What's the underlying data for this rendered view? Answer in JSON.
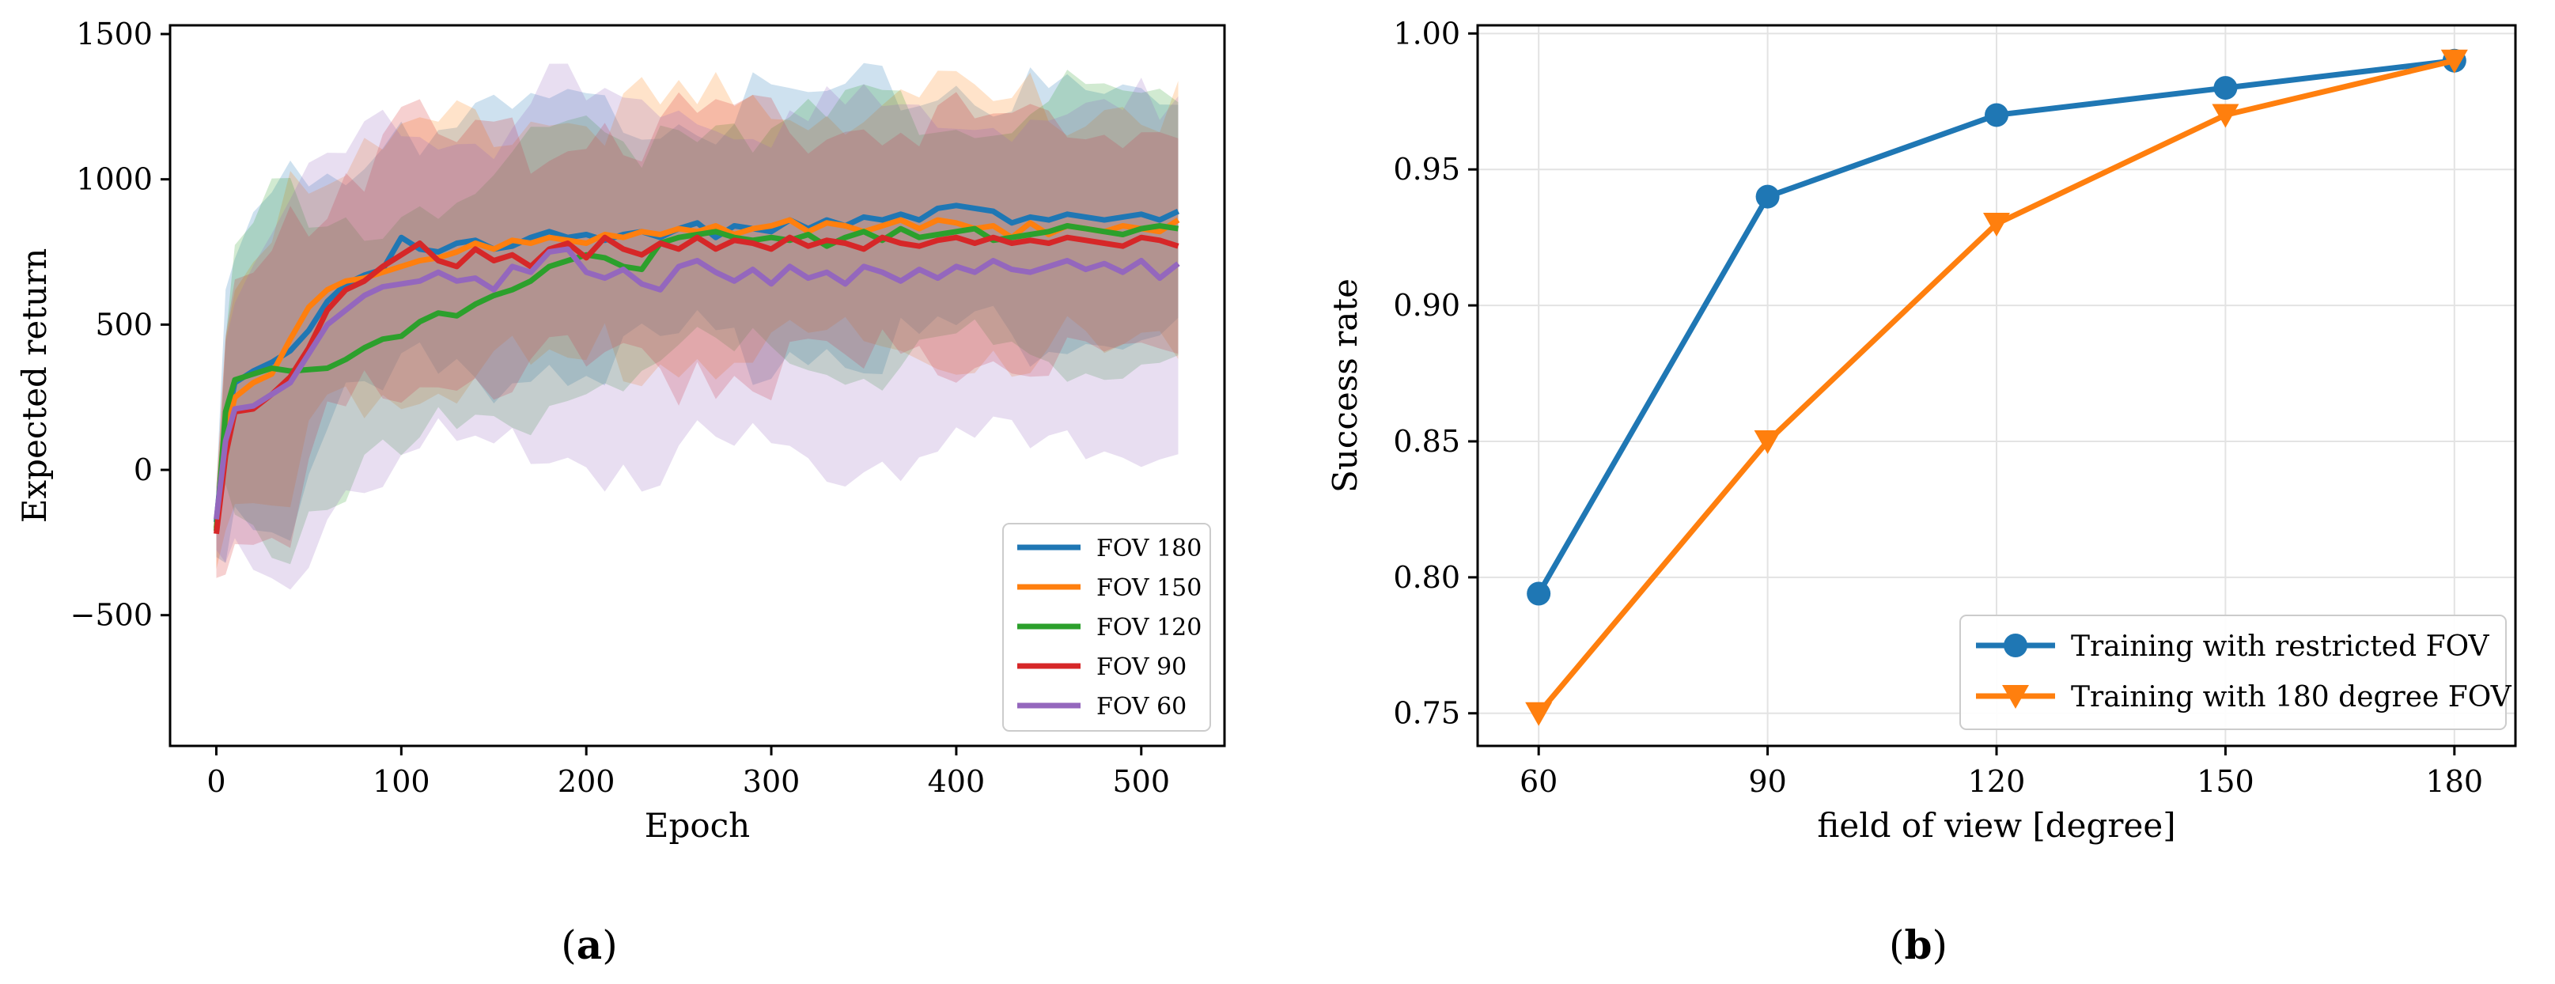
{
  "chart_data": [
    {
      "type": "line",
      "panel_label": "(a)",
      "panel_letter": "a",
      "xlabel": "Epoch",
      "ylabel": "Expected return",
      "xlim": [
        -25,
        545
      ],
      "ylim": [
        -950,
        1530
      ],
      "xticks": [
        0,
        100,
        200,
        300,
        400,
        500
      ],
      "yticks": [
        -500,
        0,
        500,
        1000,
        1500
      ],
      "ytick_labels": [
        "−500",
        "0",
        "500",
        "1000",
        "1500"
      ],
      "legend_position": "lower-right",
      "series": [
        {
          "name": "FOV 180",
          "color": "#1f77b4",
          "x": [
            0,
            5,
            10,
            20,
            30,
            40,
            50,
            60,
            70,
            80,
            90,
            100,
            110,
            120,
            130,
            140,
            150,
            160,
            170,
            180,
            190,
            200,
            210,
            220,
            230,
            240,
            250,
            260,
            270,
            280,
            290,
            300,
            310,
            320,
            330,
            340,
            350,
            360,
            370,
            380,
            390,
            400,
            410,
            420,
            430,
            440,
            450,
            460,
            470,
            480,
            490,
            500,
            510,
            520
          ],
          "y": [
            -180,
            150,
            300,
            340,
            370,
            410,
            480,
            580,
            640,
            670,
            690,
            800,
            760,
            750,
            780,
            790,
            760,
            770,
            800,
            820,
            800,
            810,
            790,
            810,
            820,
            800,
            830,
            850,
            800,
            840,
            830,
            820,
            860,
            830,
            860,
            840,
            870,
            860,
            880,
            860,
            900,
            910,
            900,
            890,
            850,
            870,
            860,
            880,
            870,
            860,
            870,
            880,
            860,
            890
          ]
        },
        {
          "name": "FOV 150",
          "color": "#ff7f0e",
          "x": [
            0,
            5,
            10,
            20,
            30,
            40,
            50,
            60,
            70,
            80,
            90,
            100,
            110,
            120,
            130,
            140,
            150,
            160,
            170,
            180,
            190,
            200,
            210,
            220,
            230,
            240,
            250,
            260,
            270,
            280,
            290,
            300,
            310,
            320,
            330,
            340,
            350,
            360,
            370,
            380,
            390,
            400,
            410,
            420,
            430,
            440,
            450,
            460,
            470,
            480,
            490,
            500,
            510,
            520
          ],
          "y": [
            -200,
            120,
            250,
            300,
            330,
            450,
            560,
            620,
            650,
            660,
            680,
            700,
            720,
            730,
            750,
            780,
            760,
            790,
            780,
            800,
            790,
            780,
            810,
            800,
            820,
            810,
            830,
            820,
            840,
            810,
            830,
            840,
            860,
            820,
            850,
            840,
            820,
            840,
            860,
            830,
            860,
            850,
            830,
            840,
            800,
            850,
            810,
            840,
            830,
            820,
            840,
            830,
            820,
            860
          ]
        },
        {
          "name": "FOV 120",
          "color": "#2ca02c",
          "x": [
            0,
            5,
            10,
            20,
            30,
            40,
            50,
            60,
            70,
            80,
            90,
            100,
            110,
            120,
            130,
            140,
            150,
            160,
            170,
            180,
            190,
            200,
            210,
            220,
            230,
            240,
            250,
            260,
            270,
            280,
            290,
            300,
            310,
            320,
            330,
            340,
            350,
            360,
            370,
            380,
            390,
            400,
            410,
            420,
            430,
            440,
            450,
            460,
            470,
            480,
            490,
            500,
            510,
            520
          ],
          "y": [
            -210,
            200,
            310,
            330,
            350,
            340,
            345,
            350,
            380,
            420,
            450,
            460,
            510,
            540,
            530,
            570,
            600,
            620,
            650,
            700,
            720,
            740,
            730,
            700,
            690,
            780,
            800,
            810,
            820,
            800,
            790,
            800,
            790,
            810,
            770,
            800,
            820,
            790,
            830,
            800,
            810,
            820,
            830,
            790,
            800,
            810,
            820,
            840,
            830,
            820,
            810,
            830,
            840,
            830
          ]
        },
        {
          "name": "FOV 90",
          "color": "#d62728",
          "x": [
            0,
            5,
            10,
            20,
            30,
            40,
            50,
            60,
            70,
            80,
            90,
            100,
            110,
            120,
            130,
            140,
            150,
            160,
            170,
            180,
            190,
            200,
            210,
            220,
            230,
            240,
            250,
            260,
            270,
            280,
            290,
            300,
            310,
            320,
            330,
            340,
            350,
            360,
            370,
            380,
            390,
            400,
            410,
            420,
            430,
            440,
            450,
            460,
            470,
            480,
            490,
            500,
            510,
            520
          ],
          "y": [
            -220,
            50,
            200,
            210,
            260,
            320,
            420,
            550,
            620,
            650,
            700,
            740,
            780,
            720,
            700,
            760,
            720,
            740,
            700,
            760,
            780,
            730,
            800,
            760,
            740,
            780,
            760,
            800,
            760,
            790,
            780,
            760,
            800,
            770,
            790,
            780,
            760,
            800,
            780,
            770,
            790,
            800,
            780,
            800,
            780,
            790,
            780,
            800,
            790,
            780,
            770,
            800,
            790,
            770
          ]
        },
        {
          "name": "FOV 60",
          "color": "#9467bd",
          "x": [
            0,
            5,
            10,
            20,
            30,
            40,
            50,
            60,
            70,
            80,
            90,
            100,
            110,
            120,
            130,
            140,
            150,
            160,
            170,
            180,
            190,
            200,
            210,
            220,
            230,
            240,
            250,
            260,
            270,
            280,
            290,
            300,
            310,
            320,
            330,
            340,
            350,
            360,
            370,
            380,
            390,
            400,
            410,
            420,
            430,
            440,
            450,
            460,
            470,
            480,
            490,
            500,
            510,
            520
          ],
          "y": [
            -170,
            100,
            210,
            220,
            260,
            300,
            400,
            500,
            550,
            600,
            630,
            640,
            650,
            680,
            650,
            660,
            620,
            700,
            680,
            750,
            760,
            680,
            660,
            690,
            640,
            620,
            700,
            720,
            680,
            650,
            690,
            640,
            700,
            660,
            680,
            640,
            700,
            680,
            650,
            690,
            660,
            700,
            680,
            720,
            690,
            680,
            700,
            720,
            690,
            710,
            680,
            720,
            660,
            710
          ]
        }
      ]
    },
    {
      "type": "line",
      "panel_label": "(b)",
      "panel_letter": "b",
      "xlabel": "field of view [degree]",
      "ylabel": "Success rate",
      "xlim": [
        52,
        188
      ],
      "ylim": [
        0.738,
        1.003
      ],
      "xticks": [
        60,
        90,
        120,
        150,
        180
      ],
      "yticks": [
        0.75,
        0.8,
        0.85,
        0.9,
        0.95,
        1.0
      ],
      "ytick_labels": [
        "0.75",
        "0.80",
        "0.85",
        "0.90",
        "0.95",
        "1.00"
      ],
      "grid": true,
      "legend_position": "lower-right",
      "categories": [
        60,
        90,
        120,
        150,
        180
      ],
      "series": [
        {
          "name": "Training with restricted FOV",
          "color": "#1f77b4",
          "marker": "circle",
          "values": [
            0.794,
            0.94,
            0.97,
            0.98,
            0.99
          ]
        },
        {
          "name": "Training with 180 degree FOV",
          "color": "#ff7f0e",
          "marker": "triangle-down",
          "values": [
            0.75,
            0.85,
            0.93,
            0.97,
            0.99
          ]
        }
      ]
    }
  ]
}
